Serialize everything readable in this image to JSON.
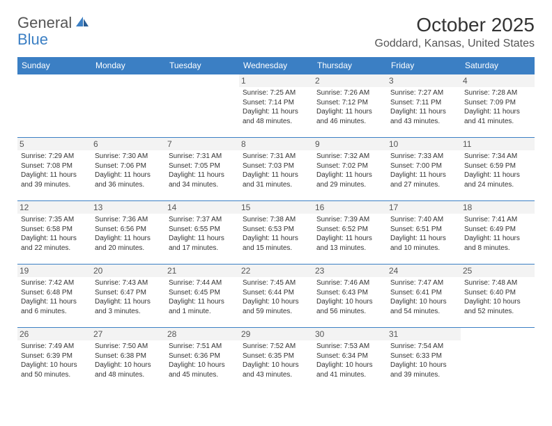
{
  "logo": {
    "text1": "General",
    "text2": "Blue"
  },
  "title": "October 2025",
  "location": "Goddard, Kansas, United States",
  "header_bg": "#3b7fc4",
  "day_headers": [
    "Sunday",
    "Monday",
    "Tuesday",
    "Wednesday",
    "Thursday",
    "Friday",
    "Saturday"
  ],
  "weeks": [
    [
      {
        "n": "",
        "lines": [
          "",
          "",
          "",
          ""
        ]
      },
      {
        "n": "",
        "lines": [
          "",
          "",
          "",
          ""
        ]
      },
      {
        "n": "",
        "lines": [
          "",
          "",
          "",
          ""
        ]
      },
      {
        "n": "1",
        "lines": [
          "Sunrise: 7:25 AM",
          "Sunset: 7:14 PM",
          "Daylight: 11 hours",
          "and 48 minutes."
        ]
      },
      {
        "n": "2",
        "lines": [
          "Sunrise: 7:26 AM",
          "Sunset: 7:12 PM",
          "Daylight: 11 hours",
          "and 46 minutes."
        ]
      },
      {
        "n": "3",
        "lines": [
          "Sunrise: 7:27 AM",
          "Sunset: 7:11 PM",
          "Daylight: 11 hours",
          "and 43 minutes."
        ]
      },
      {
        "n": "4",
        "lines": [
          "Sunrise: 7:28 AM",
          "Sunset: 7:09 PM",
          "Daylight: 11 hours",
          "and 41 minutes."
        ]
      }
    ],
    [
      {
        "n": "5",
        "lines": [
          "Sunrise: 7:29 AM",
          "Sunset: 7:08 PM",
          "Daylight: 11 hours",
          "and 39 minutes."
        ]
      },
      {
        "n": "6",
        "lines": [
          "Sunrise: 7:30 AM",
          "Sunset: 7:06 PM",
          "Daylight: 11 hours",
          "and 36 minutes."
        ]
      },
      {
        "n": "7",
        "lines": [
          "Sunrise: 7:31 AM",
          "Sunset: 7:05 PM",
          "Daylight: 11 hours",
          "and 34 minutes."
        ]
      },
      {
        "n": "8",
        "lines": [
          "Sunrise: 7:31 AM",
          "Sunset: 7:03 PM",
          "Daylight: 11 hours",
          "and 31 minutes."
        ]
      },
      {
        "n": "9",
        "lines": [
          "Sunrise: 7:32 AM",
          "Sunset: 7:02 PM",
          "Daylight: 11 hours",
          "and 29 minutes."
        ]
      },
      {
        "n": "10",
        "lines": [
          "Sunrise: 7:33 AM",
          "Sunset: 7:00 PM",
          "Daylight: 11 hours",
          "and 27 minutes."
        ]
      },
      {
        "n": "11",
        "lines": [
          "Sunrise: 7:34 AM",
          "Sunset: 6:59 PM",
          "Daylight: 11 hours",
          "and 24 minutes."
        ]
      }
    ],
    [
      {
        "n": "12",
        "lines": [
          "Sunrise: 7:35 AM",
          "Sunset: 6:58 PM",
          "Daylight: 11 hours",
          "and 22 minutes."
        ]
      },
      {
        "n": "13",
        "lines": [
          "Sunrise: 7:36 AM",
          "Sunset: 6:56 PM",
          "Daylight: 11 hours",
          "and 20 minutes."
        ]
      },
      {
        "n": "14",
        "lines": [
          "Sunrise: 7:37 AM",
          "Sunset: 6:55 PM",
          "Daylight: 11 hours",
          "and 17 minutes."
        ]
      },
      {
        "n": "15",
        "lines": [
          "Sunrise: 7:38 AM",
          "Sunset: 6:53 PM",
          "Daylight: 11 hours",
          "and 15 minutes."
        ]
      },
      {
        "n": "16",
        "lines": [
          "Sunrise: 7:39 AM",
          "Sunset: 6:52 PM",
          "Daylight: 11 hours",
          "and 13 minutes."
        ]
      },
      {
        "n": "17",
        "lines": [
          "Sunrise: 7:40 AM",
          "Sunset: 6:51 PM",
          "Daylight: 11 hours",
          "and 10 minutes."
        ]
      },
      {
        "n": "18",
        "lines": [
          "Sunrise: 7:41 AM",
          "Sunset: 6:49 PM",
          "Daylight: 11 hours",
          "and 8 minutes."
        ]
      }
    ],
    [
      {
        "n": "19",
        "lines": [
          "Sunrise: 7:42 AM",
          "Sunset: 6:48 PM",
          "Daylight: 11 hours",
          "and 6 minutes."
        ]
      },
      {
        "n": "20",
        "lines": [
          "Sunrise: 7:43 AM",
          "Sunset: 6:47 PM",
          "Daylight: 11 hours",
          "and 3 minutes."
        ]
      },
      {
        "n": "21",
        "lines": [
          "Sunrise: 7:44 AM",
          "Sunset: 6:45 PM",
          "Daylight: 11 hours",
          "and 1 minute."
        ]
      },
      {
        "n": "22",
        "lines": [
          "Sunrise: 7:45 AM",
          "Sunset: 6:44 PM",
          "Daylight: 10 hours",
          "and 59 minutes."
        ]
      },
      {
        "n": "23",
        "lines": [
          "Sunrise: 7:46 AM",
          "Sunset: 6:43 PM",
          "Daylight: 10 hours",
          "and 56 minutes."
        ]
      },
      {
        "n": "24",
        "lines": [
          "Sunrise: 7:47 AM",
          "Sunset: 6:41 PM",
          "Daylight: 10 hours",
          "and 54 minutes."
        ]
      },
      {
        "n": "25",
        "lines": [
          "Sunrise: 7:48 AM",
          "Sunset: 6:40 PM",
          "Daylight: 10 hours",
          "and 52 minutes."
        ]
      }
    ],
    [
      {
        "n": "26",
        "lines": [
          "Sunrise: 7:49 AM",
          "Sunset: 6:39 PM",
          "Daylight: 10 hours",
          "and 50 minutes."
        ]
      },
      {
        "n": "27",
        "lines": [
          "Sunrise: 7:50 AM",
          "Sunset: 6:38 PM",
          "Daylight: 10 hours",
          "and 48 minutes."
        ]
      },
      {
        "n": "28",
        "lines": [
          "Sunrise: 7:51 AM",
          "Sunset: 6:36 PM",
          "Daylight: 10 hours",
          "and 45 minutes."
        ]
      },
      {
        "n": "29",
        "lines": [
          "Sunrise: 7:52 AM",
          "Sunset: 6:35 PM",
          "Daylight: 10 hours",
          "and 43 minutes."
        ]
      },
      {
        "n": "30",
        "lines": [
          "Sunrise: 7:53 AM",
          "Sunset: 6:34 PM",
          "Daylight: 10 hours",
          "and 41 minutes."
        ]
      },
      {
        "n": "31",
        "lines": [
          "Sunrise: 7:54 AM",
          "Sunset: 6:33 PM",
          "Daylight: 10 hours",
          "and 39 minutes."
        ]
      },
      {
        "n": "",
        "lines": [
          "",
          "",
          "",
          ""
        ]
      }
    ]
  ]
}
